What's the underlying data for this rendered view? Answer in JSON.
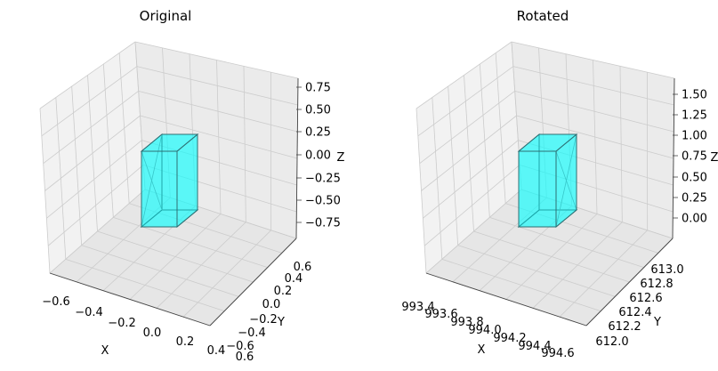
{
  "chart_data": [
    {
      "type": "3d-box",
      "title": "Original",
      "xlabel": "X",
      "ylabel": "Y",
      "zlabel": "Z",
      "x_ticks": [
        "−0.6",
        "−0.4",
        "−0.2",
        "0.0",
        "0.2",
        "0.4",
        "0.6"
      ],
      "y_ticks": [
        "−0.6",
        "−0.4",
        "−0.2",
        "0.0",
        "0.2",
        "0.4",
        "0.6"
      ],
      "z_ticks": [
        "0.75",
        "0.50",
        "0.25",
        "0.00",
        "−0.25",
        "−0.50",
        "−0.75"
      ],
      "xlim": [
        -0.6,
        0.6
      ],
      "ylim": [
        -0.6,
        0.6
      ],
      "zlim": [
        -0.75,
        0.75
      ],
      "box_color": "#00ffff",
      "grid": true
    },
    {
      "type": "3d-box",
      "title": "Rotated",
      "xlabel": "X",
      "ylabel": "Y",
      "zlabel": "Z",
      "x_ticks": [
        "993.4",
        "993.6",
        "993.8",
        "994.0",
        "994.2",
        "994.4",
        "994.6"
      ],
      "y_ticks": [
        "612.0",
        "612.2",
        "612.4",
        "612.6",
        "612.8",
        "613.0"
      ],
      "z_ticks": [
        "1.50",
        "1.25",
        "1.00",
        "0.75",
        "0.50",
        "0.25",
        "0.00"
      ],
      "xlim": [
        993.4,
        994.6
      ],
      "ylim": [
        612.0,
        613.0
      ],
      "zlim": [
        0.0,
        1.5
      ],
      "box_color": "#00ffff",
      "grid": true
    }
  ]
}
